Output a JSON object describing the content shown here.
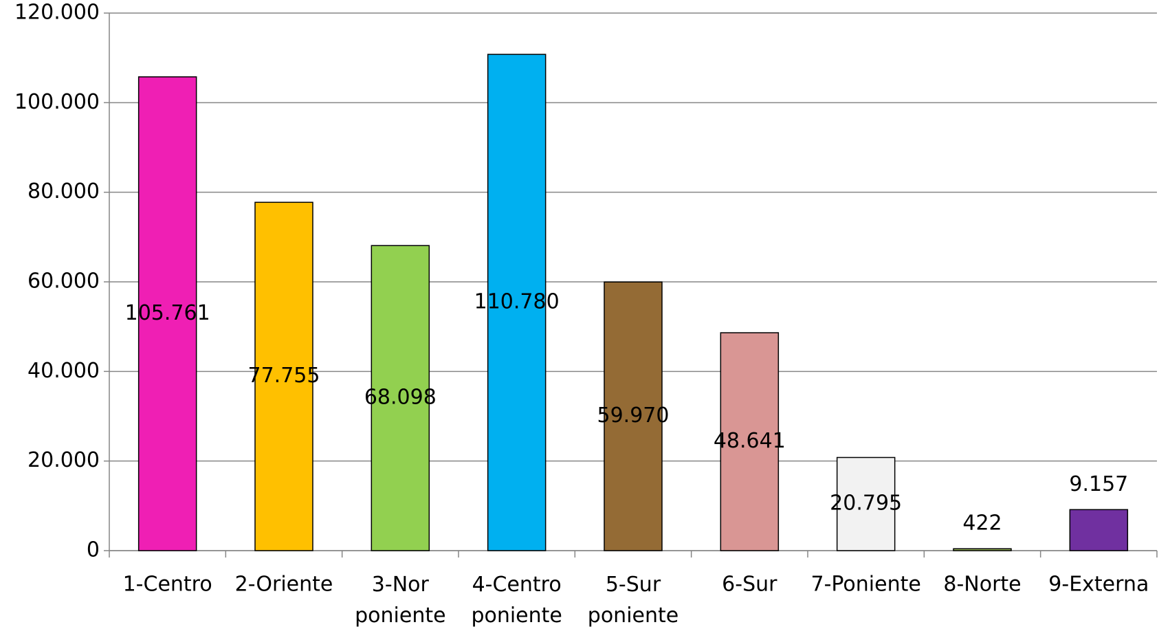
{
  "chart_data": {
    "type": "bar",
    "categories": [
      "1-Centro",
      "2-Oriente",
      "3-Nor poniente",
      "4-Centro poniente",
      "5-Sur poniente",
      "6-Sur",
      "7-Poniente",
      "8-Norte",
      "9-Externa"
    ],
    "values": [
      105761,
      77755,
      68098,
      110780,
      59970,
      48641,
      20795,
      422,
      9157
    ],
    "value_labels": [
      "105.761",
      "77.755",
      "68.098",
      "110.780",
      "59.970",
      "48.641",
      "20.795",
      "422",
      "9.157"
    ],
    "colors": [
      "#ef1fb4",
      "#ffc000",
      "#92d050",
      "#00b0f0",
      "#946b35",
      "#d99694",
      "#f2f2f2",
      "#9bbb59",
      "#7030a0"
    ],
    "ylim": [
      0,
      120000
    ],
    "yticks": [
      0,
      {
        "value": 20000,
        "label": "20.000"
      },
      {
        "value": 40000,
        "label": "40.000"
      },
      {
        "value": 60000,
        "label": "60.000"
      },
      {
        "value": 80000,
        "label": "80.000"
      },
      {
        "value": 100000,
        "label": "100.000"
      },
      {
        "value": 120000,
        "label": "120.000"
      }
    ],
    "grid": true
  }
}
